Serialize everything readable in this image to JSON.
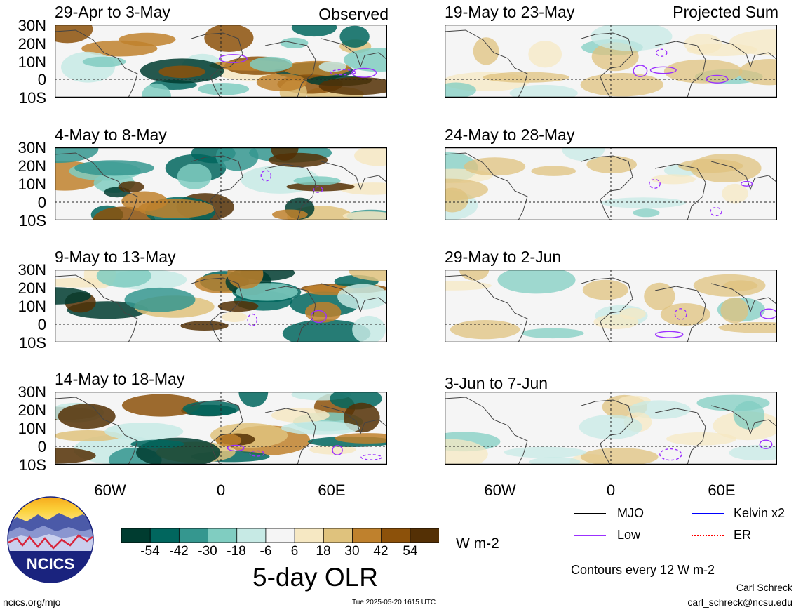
{
  "header": {
    "observed_label": "Observed",
    "projected_label": "Projected Sum"
  },
  "panels": [
    {
      "title": "29-Apr to 3-May",
      "column": "observed"
    },
    {
      "title": "4-May to 8-May",
      "column": "observed"
    },
    {
      "title": "9-May to 13-May",
      "column": "observed"
    },
    {
      "title": "14-May to 18-May",
      "column": "observed"
    },
    {
      "title": "19-May to 23-May",
      "column": "projected"
    },
    {
      "title": "24-May to 28-May",
      "column": "projected"
    },
    {
      "title": "29-May to 2-Jun",
      "column": "projected"
    },
    {
      "title": "3-Jun to 7-Jun",
      "column": "projected"
    }
  ],
  "y_axis_labels": [
    "30N",
    "20N",
    "10N",
    "0",
    "10S"
  ],
  "x_axis_labels": [
    "60W",
    "0",
    "60E"
  ],
  "colorbar": {
    "ticks": [
      "-54",
      "-42",
      "-30",
      "-18",
      "-6",
      "6",
      "18",
      "30",
      "42",
      "54"
    ],
    "colors": [
      "#003c30",
      "#01665e",
      "#35978f",
      "#80cdc1",
      "#c7eae5",
      "#f5f5f5",
      "#f6e8c3",
      "#dfc27d",
      "#bf812d",
      "#8c510a",
      "#543005"
    ],
    "units": "W m-2",
    "title": "5-day OLR"
  },
  "legend": {
    "items": [
      {
        "label": "MJO",
        "color": "#000000"
      },
      {
        "label": "Kelvin x2",
        "color": "#0000ff"
      },
      {
        "label": "Low",
        "color": "#9b30ff"
      },
      {
        "label": "ER",
        "color": "#ff0000"
      }
    ],
    "contour_note": "Contours every 12 W m-2"
  },
  "footer": {
    "left_url": "ncics.org/mjo",
    "timestamp": "Tue 2025-05-20 1615 UTC",
    "author": "Carl Schreck",
    "email": "carl_schreck@ncsu.edu"
  },
  "logo": {
    "text": "NCICS"
  }
}
